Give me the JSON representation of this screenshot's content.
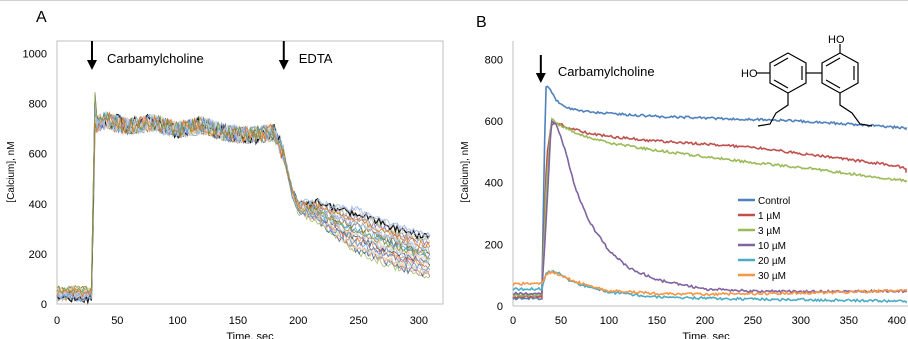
{
  "chart_data": [
    {
      "panel_label": "A",
      "type": "line",
      "xlabel": "Time, sec",
      "ylabel": "[Calcium], nM",
      "xlim": [
        0,
        320
      ],
      "ylim": [
        0,
        1050
      ],
      "x_ticks": [
        0,
        50,
        100,
        150,
        200,
        250,
        300
      ],
      "y_ticks": [
        0,
        200,
        400,
        600,
        800,
        1000
      ],
      "grid": false,
      "annotations": [
        {
          "text": "Carbamylcholine",
          "x": 29,
          "arrow": true
        },
        {
          "text": "EDTA",
          "x": 188,
          "arrow": true
        }
      ],
      "trace_count": 26,
      "trace_colors": [
        "#4472c4",
        "#c0504d",
        "#9bbb59",
        "#8064a2",
        "#4bacc6",
        "#f79646",
        "#2f5597",
        "#a5a5a5",
        "#7f6000",
        "#1f497d",
        "#d99694",
        "#c3d69b",
        "#b3a2c7",
        "#93cddd",
        "#fac090",
        "#000000",
        "#95b3d7",
        "#e6b9b8",
        "#d7e4bc",
        "#ccc1da",
        "#b7dee8",
        "#fcd5b4",
        "#558ed5",
        "#8eb4e3",
        "#e46c0a",
        "#77933c"
      ],
      "sample_trace": {
        "x": [
          0,
          10,
          20,
          29,
          31,
          40,
          60,
          80,
          100,
          120,
          140,
          160,
          180,
          188,
          195,
          200,
          220,
          240,
          260,
          280,
          300,
          310
        ],
        "y": [
          40,
          45,
          38,
          42,
          820,
          840,
          815,
          830,
          800,
          820,
          790,
          780,
          790,
          700,
          520,
          440,
          340,
          270,
          230,
          190,
          160,
          150
        ]
      }
    },
    {
      "panel_label": "B",
      "type": "line",
      "xlabel": "Time, sec",
      "ylabel": "[Calcium], nM",
      "xlim": [
        0,
        420
      ],
      "ylim": [
        0,
        860
      ],
      "x_ticks": [
        0,
        50,
        100,
        150,
        200,
        250,
        300,
        350,
        400
      ],
      "y_ticks": [
        0,
        200,
        400,
        600,
        800
      ],
      "grid": false,
      "legend_position": "right",
      "annotations": [
        {
          "text": "Carbamylcholine",
          "x": 29,
          "arrow": true
        }
      ],
      "structure_labels": [
        "HO",
        "HO"
      ],
      "series": [
        {
          "name": "Control",
          "color": "#4f81bd",
          "x": [
            0,
            25,
            30,
            34,
            38,
            45,
            60,
            80,
            100,
            150,
            200,
            250,
            300,
            350,
            400,
            420
          ],
          "y": [
            25,
            25,
            24,
            715,
            705,
            665,
            640,
            630,
            625,
            615,
            610,
            605,
            600,
            590,
            580,
            575
          ]
        },
        {
          "name": "1 µM",
          "color": "#c0504d",
          "x": [
            0,
            25,
            30,
            35,
            40,
            50,
            60,
            80,
            100,
            150,
            200,
            250,
            300,
            350,
            400,
            420
          ],
          "y": [
            30,
            30,
            30,
            480,
            590,
            590,
            575,
            560,
            550,
            535,
            525,
            515,
            495,
            475,
            455,
            435
          ]
        },
        {
          "name": "3 µM",
          "color": "#9bbb59",
          "x": [
            0,
            25,
            30,
            35,
            40,
            50,
            70,
            100,
            150,
            200,
            250,
            300,
            350,
            400,
            420
          ],
          "y": [
            35,
            35,
            35,
            400,
            605,
            585,
            555,
            530,
            505,
            485,
            465,
            450,
            430,
            410,
            400
          ]
        },
        {
          "name": "10 µM",
          "color": "#8064a2",
          "x": [
            0,
            25,
            30,
            35,
            40,
            45,
            55,
            65,
            80,
            100,
            120,
            150,
            200,
            250,
            300,
            350,
            400,
            420
          ],
          "y": [
            40,
            40,
            40,
            300,
            600,
            590,
            500,
            380,
            270,
            180,
            125,
            85,
            55,
            48,
            47,
            47,
            48,
            48
          ]
        },
        {
          "name": "20 µM",
          "color": "#4bacc6",
          "x": [
            0,
            25,
            30,
            35,
            40,
            50,
            60,
            80,
            100,
            150,
            200,
            250,
            300,
            350,
            400,
            420
          ],
          "y": [
            55,
            55,
            55,
            110,
            112,
            105,
            80,
            60,
            45,
            30,
            25,
            22,
            20,
            18,
            16,
            15
          ]
        },
        {
          "name": "30 µM",
          "color": "#f79646",
          "x": [
            0,
            25,
            30,
            35,
            40,
            50,
            60,
            80,
            100,
            150,
            200,
            250,
            300,
            350,
            400,
            420
          ],
          "y": [
            70,
            75,
            70,
            105,
            110,
            100,
            85,
            65,
            50,
            40,
            38,
            40,
            42,
            45,
            50,
            52
          ]
        }
      ]
    }
  ]
}
